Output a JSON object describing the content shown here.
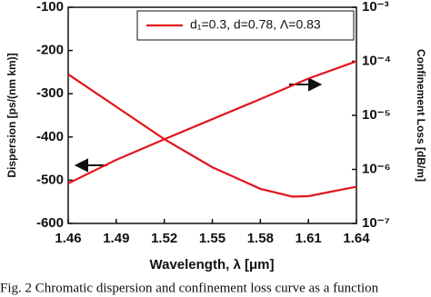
{
  "chart_data": {
    "type": "line",
    "xlabel": "Wavelength, λ [μm]",
    "ylabel": "Dispersion [ps/(nm km)]",
    "y2label": "Confinement Loss [dB/m]",
    "caption": "Fig. 2 Chromatic dispersion and confinement loss curve as a function",
    "xlim": [
      1.46,
      1.64
    ],
    "xticks": [
      1.46,
      1.49,
      1.52,
      1.55,
      1.58,
      1.61,
      1.64
    ],
    "ylim": [
      -600,
      -100
    ],
    "yticks": [
      -100,
      -200,
      -300,
      -400,
      -500,
      -600
    ],
    "y2lim": [
      1e-07,
      0.001
    ],
    "y2log": true,
    "y2ticks": [
      {
        "value": 0.001,
        "label": "10⁻³"
      },
      {
        "value": 0.0001,
        "label": "10⁻⁴"
      },
      {
        "value": 1e-05,
        "label": "10⁻⁵"
      },
      {
        "value": 1e-06,
        "label": "10⁻⁶"
      },
      {
        "value": 1e-07,
        "label": "10⁻⁷"
      }
    ],
    "legend": "upper right",
    "series": [
      {
        "name": "d₁=0.3, d=0.78, Λ=0.83",
        "color": "#e3141c",
        "x": [
          1.46,
          1.49,
          1.52,
          1.55,
          1.58,
          1.6,
          1.61,
          1.64
        ],
        "values": [
          -255,
          -330,
          -405,
          -470,
          -520,
          -538,
          -537,
          -515
        ]
      },
      {
        "color": "#e3141c",
        "axis": "y2",
        "x": [
          1.46,
          1.49,
          1.52,
          1.55,
          1.58,
          1.61,
          1.64
        ],
        "values": [
          5.5e-07,
          1.5e-06,
          3.6e-06,
          8.5e-06,
          2e-05,
          4.8e-05,
          0.0001
        ]
      }
    ]
  }
}
